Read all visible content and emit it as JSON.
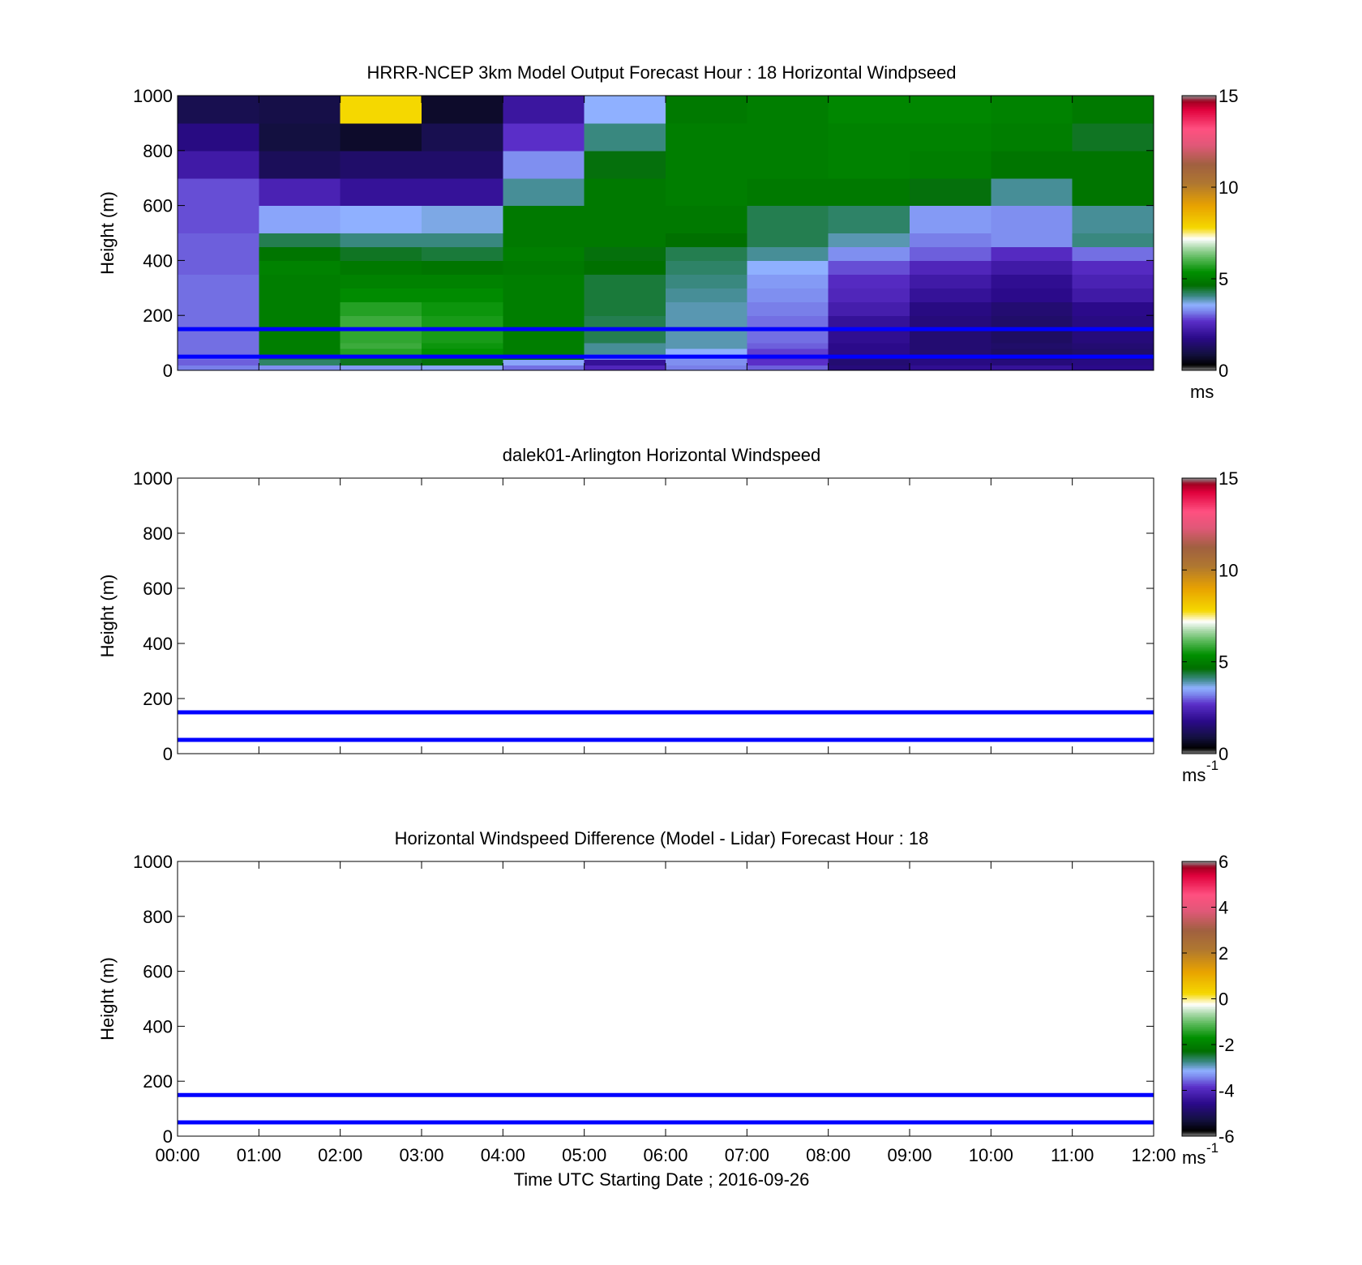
{
  "chart_data": [
    {
      "type": "heatmap",
      "title": "HRRR-NCEP 3km Model Output   Forecast Hour : 18 Horizontal Windpseed",
      "xlabel": "",
      "ylabel": "Height (m)",
      "xlim": [
        0,
        12
      ],
      "ylim": [
        0,
        1000
      ],
      "yticks": [
        0,
        200,
        400,
        600,
        800,
        1000
      ],
      "x_tick_labels": [],
      "colorbar": {
        "ticks": [
          "0",
          "5",
          "10",
          "15"
        ],
        "tick_values": [
          0,
          5,
          10,
          15
        ],
        "range": [
          0,
          15
        ],
        "unit": "ms",
        "unit_sup": ""
      },
      "reference_lines": [
        50,
        150
      ],
      "grid": false,
      "time_edges": [
        0,
        1,
        2,
        3,
        4,
        5,
        6,
        7,
        8,
        9,
        10,
        11,
        12
      ],
      "height_edges": [
        0,
        20,
        40,
        60,
        80,
        100,
        150,
        200,
        250,
        300,
        350,
        400,
        450,
        500,
        600,
        700,
        800,
        900,
        1000
      ],
      "windspeed": [
        [
          3.2,
          3.3,
          3.4,
          3.5,
          3.1,
          2.5,
          3.2,
          3.0,
          1.6,
          1.9,
          2.0,
          1.8
        ],
        [
          3.0,
          4.2,
          4.5,
          4.6,
          3.5,
          2.0,
          3.3,
          2.7,
          1.5,
          1.7,
          1.6,
          1.7
        ],
        [
          3.1,
          4.4,
          5.4,
          5.2,
          4.7,
          3.2,
          3.4,
          2.6,
          1.6,
          1.6,
          1.4,
          1.5
        ],
        [
          3.1,
          5.0,
          5.7,
          5.4,
          5.0,
          4.0,
          3.6,
          2.8,
          1.8,
          1.5,
          1.3,
          1.4
        ],
        [
          3.1,
          5.0,
          5.9,
          5.5,
          5.0,
          4.0,
          3.9,
          3.0,
          1.8,
          1.5,
          1.4,
          1.5
        ],
        [
          3.1,
          5.0,
          5.8,
          5.6,
          5.0,
          4.3,
          3.9,
          3.1,
          1.9,
          1.5,
          1.3,
          1.6
        ],
        [
          3.1,
          5.0,
          5.9,
          5.6,
          5.0,
          4.3,
          3.9,
          3.1,
          2.0,
          1.6,
          1.4,
          1.7
        ],
        [
          3.1,
          5.0,
          5.7,
          5.5,
          5.0,
          4.4,
          3.9,
          3.2,
          2.3,
          1.7,
          1.5,
          1.8
        ],
        [
          3.1,
          5.0,
          5.3,
          5.3,
          5.0,
          4.4,
          4.0,
          3.3,
          2.5,
          2.0,
          1.8,
          2.2
        ],
        [
          3.1,
          5.0,
          5.1,
          5.1,
          5.0,
          4.4,
          4.1,
          3.4,
          2.6,
          2.2,
          1.9,
          2.4
        ],
        [
          3.0,
          5.1,
          4.9,
          4.8,
          4.9,
          4.7,
          4.2,
          3.6,
          2.9,
          2.5,
          2.2,
          2.6
        ],
        [
          3.0,
          4.8,
          4.5,
          4.4,
          5.0,
          4.6,
          4.3,
          4.0,
          3.3,
          3.0,
          2.6,
          3.1
        ],
        [
          3.0,
          4.3,
          4.1,
          4.1,
          4.9,
          4.9,
          4.7,
          4.3,
          3.9,
          3.2,
          3.3,
          4.1
        ],
        [
          2.9,
          3.5,
          3.6,
          3.7,
          4.9,
          4.9,
          4.9,
          4.3,
          4.2,
          3.4,
          3.3,
          4.0
        ],
        [
          2.9,
          2.4,
          2.0,
          2.0,
          4.0,
          4.9,
          5.0,
          4.9,
          4.9,
          4.6,
          4.0,
          4.8
        ],
        [
          2.2,
          1.2,
          1.4,
          1.4,
          3.3,
          4.6,
          5.0,
          5.0,
          5.1,
          5.0,
          4.8,
          4.8
        ],
        [
          1.7,
          0.9,
          0.7,
          1.1,
          2.7,
          4.1,
          5.0,
          5.0,
          5.1,
          5.1,
          5.0,
          4.5
        ],
        [
          1.1,
          1.0,
          7.8,
          0.7,
          2.1,
          3.6,
          4.9,
          5.0,
          5.2,
          5.2,
          5.1,
          4.9
        ]
      ]
    },
    {
      "type": "heatmap",
      "title": "dalek01-Arlington  Horizontal Windspeed",
      "xlabel": "",
      "ylabel": "Height (m)",
      "xlim": [
        0,
        12
      ],
      "ylim": [
        0,
        1000
      ],
      "yticks": [
        0,
        200,
        400,
        600,
        800,
        1000
      ],
      "x_tick_labels": [],
      "colorbar": {
        "ticks": [
          "0",
          "5",
          "10",
          "15"
        ],
        "tick_values": [
          0,
          5,
          10,
          15
        ],
        "range": [
          0,
          15
        ],
        "unit": "ms",
        "unit_sup": "-1"
      },
      "reference_lines": [
        50,
        150
      ],
      "grid": false
    },
    {
      "type": "heatmap",
      "title": "Horizontal Windspeed Difference (Model - Lidar) Forecast Hour : 18",
      "xlabel": "Time UTC  Starting Date ; 2016-09-26",
      "ylabel": "Height (m)",
      "xlim": [
        0,
        12
      ],
      "ylim": [
        0,
        1000
      ],
      "yticks": [
        0,
        200,
        400,
        600,
        800,
        1000
      ],
      "x_tick_labels": [
        "00:00",
        "01:00",
        "02:00",
        "03:00",
        "04:00",
        "05:00",
        "06:00",
        "07:00",
        "08:00",
        "09:00",
        "10:00",
        "11:00",
        "12:00"
      ],
      "colorbar": {
        "ticks": [
          "-6",
          "-4",
          "-2",
          "0",
          "2",
          "4",
          "6"
        ],
        "tick_values": [
          -6,
          -4,
          -2,
          0,
          2,
          4,
          6
        ],
        "range": [
          -6,
          6
        ],
        "unit": "ms",
        "unit_sup": "-1"
      },
      "reference_lines": [
        50,
        150
      ],
      "grid": false
    }
  ]
}
